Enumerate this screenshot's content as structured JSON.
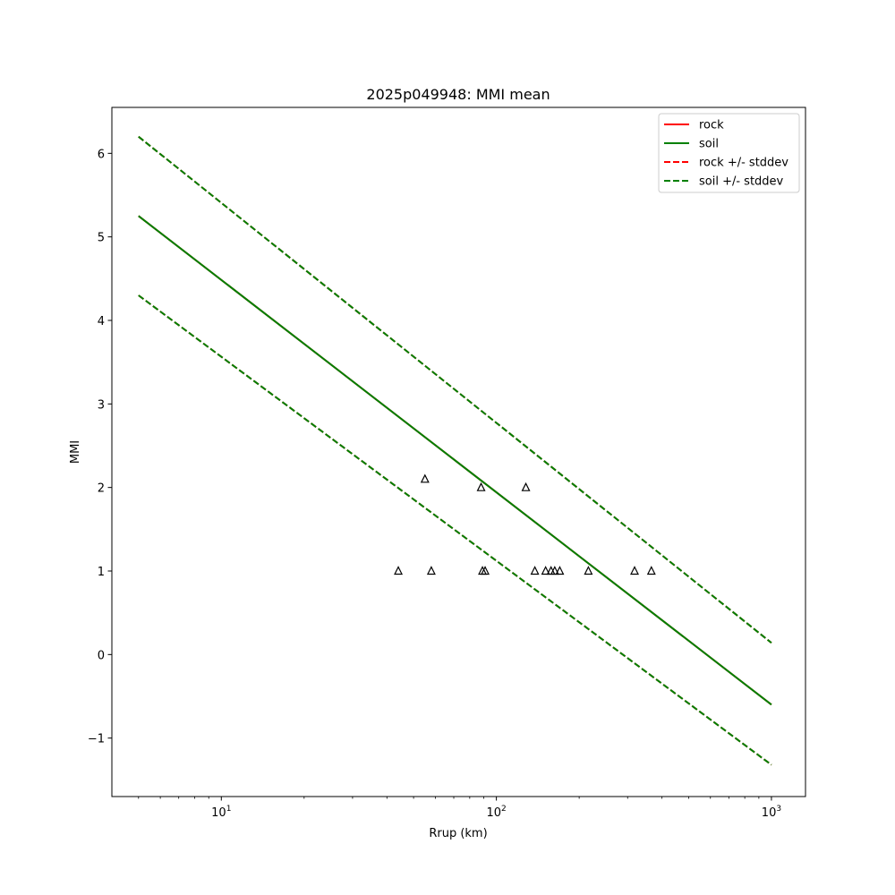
{
  "chart_data": {
    "type": "line",
    "title": "2025p049948: MMI mean",
    "xlabel": "Rrup (km)",
    "ylabel": "MMI",
    "xscale": "log",
    "xlim": [
      4.0,
      1330
    ],
    "ylim": [
      -1.7,
      6.55
    ],
    "grid": false,
    "legend_placement": "top-right",
    "x_ticks": [
      {
        "value": 10,
        "base": "10",
        "exp": "1"
      },
      {
        "value": 100,
        "base": "10",
        "exp": "2"
      },
      {
        "value": 1000,
        "base": "10",
        "exp": "3"
      }
    ],
    "y_ticks": [
      {
        "value": -1,
        "label": "−1"
      },
      {
        "value": 0,
        "label": "0"
      },
      {
        "value": 1,
        "label": "1"
      },
      {
        "value": 2,
        "label": "2"
      },
      {
        "value": 3,
        "label": "3"
      },
      {
        "value": 4,
        "label": "4"
      },
      {
        "value": 5,
        "label": "5"
      },
      {
        "value": 6,
        "label": "6"
      }
    ],
    "series": [
      {
        "name": "rock",
        "color": "#ff0000",
        "dash": false,
        "x": [
          5,
          1000
        ],
        "y": [
          5.25,
          -0.6
        ]
      },
      {
        "name": "soil",
        "color": "#008000",
        "dash": false,
        "x": [
          5,
          1000
        ],
        "y": [
          5.25,
          -0.6
        ]
      },
      {
        "name": "rock +/- stddev",
        "color": "#ff0000",
        "dash": true,
        "upper": {
          "x": [
            5,
            1000
          ],
          "y": [
            6.2,
            0.14
          ]
        },
        "lower": {
          "x": [
            5,
            1000
          ],
          "y": [
            4.3,
            -1.32
          ]
        }
      },
      {
        "name": "soil +/- stddev",
        "color": "#008000",
        "dash": true,
        "upper": {
          "x": [
            5,
            1000
          ],
          "y": [
            6.2,
            0.14
          ]
        },
        "lower": {
          "x": [
            5,
            1000
          ],
          "y": [
            4.3,
            -1.32
          ]
        }
      }
    ],
    "stations": {
      "marker": "triangle-open",
      "color": "#000000",
      "points": [
        {
          "x": 44,
          "y": 1
        },
        {
          "x": 55,
          "y": 2.1
        },
        {
          "x": 58,
          "y": 1
        },
        {
          "x": 88,
          "y": 2
        },
        {
          "x": 89,
          "y": 1
        },
        {
          "x": 91,
          "y": 1
        },
        {
          "x": 128,
          "y": 2
        },
        {
          "x": 138,
          "y": 1
        },
        {
          "x": 151,
          "y": 1
        },
        {
          "x": 158,
          "y": 1
        },
        {
          "x": 163,
          "y": 1
        },
        {
          "x": 170,
          "y": 1
        },
        {
          "x": 216,
          "y": 1
        },
        {
          "x": 318,
          "y": 1
        },
        {
          "x": 366,
          "y": 1
        }
      ]
    }
  }
}
